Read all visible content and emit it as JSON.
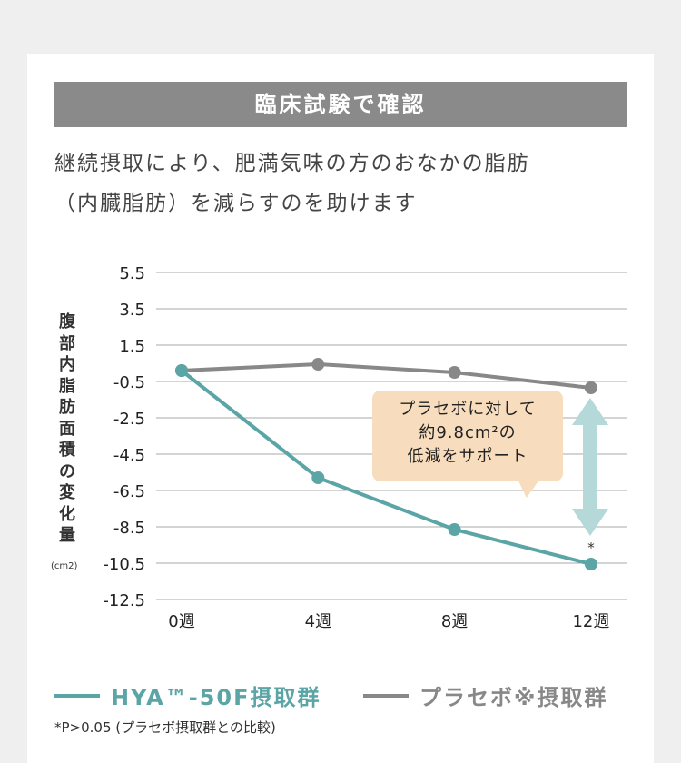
{
  "header": {
    "title": "臨床試験で確認"
  },
  "lead": {
    "line1": "継続摂取により、肥満気味の方のおなかの脂肪",
    "line2": "（内臓脂肪）を減らすのを助けます"
  },
  "chart_data": {
    "type": "line",
    "ylabel": "腹部内脂肪面積の変化量",
    "yunit": "(cm2)",
    "categories": [
      "0週",
      "4週",
      "8週",
      "12週"
    ],
    "yticks": [
      "5.5",
      "3.5",
      "1.5",
      "-0.5",
      "-2.5",
      "-4.5",
      "-6.5",
      "-8.5",
      "-10.5",
      "-12.5"
    ],
    "ylim": [
      -12.5,
      5.5
    ],
    "grid": true,
    "legend_position": "bottom",
    "series": [
      {
        "name": "HYA™-50F摂取群",
        "color": "#5ba5a6",
        "values": [
          0.1,
          -5.8,
          -8.65,
          -10.55
        ]
      },
      {
        "name": "プラセボ※摂取群",
        "color": "#888888",
        "values": [
          0.1,
          0.45,
          0.0,
          -0.85
        ]
      }
    ],
    "annotations": {
      "callout": [
        "プラセボに対して",
        "約9.8cm²の",
        "低減をサポート"
      ],
      "asterisk": "*",
      "arrow_color": "#b5d8d8",
      "callout_color": "#f7dcbd"
    }
  },
  "footnote": "*P>0.05 (プラセボ摂取群との比較)"
}
